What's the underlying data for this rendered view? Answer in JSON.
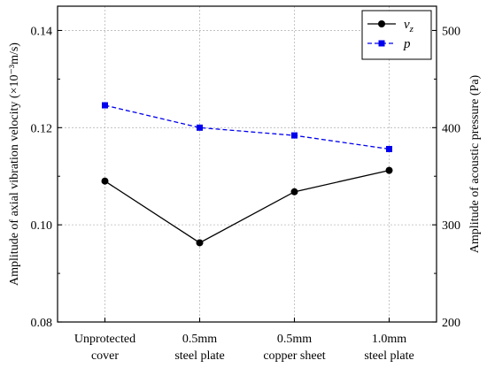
{
  "chart_data": {
    "type": "line",
    "categories": [
      [
        "Unprotected",
        "cover"
      ],
      [
        "0.5mm",
        "steel plate"
      ],
      [
        "0.5mm",
        "copper sheet"
      ],
      [
        "1.0mm",
        "steel plate"
      ]
    ],
    "left_axis": {
      "label": "Amplitude of axial vibration velocity (×10⁻³m/s)",
      "ylim": [
        0.08,
        0.145
      ],
      "ticks": [
        0.08,
        0.1,
        0.12,
        0.14
      ],
      "tick_labels": [
        "0.08",
        "0.10",
        "0.12",
        "0.14"
      ]
    },
    "right_axis": {
      "label": "Amplitude of acoustic pressure (Pa)",
      "ylim": [
        200,
        525
      ],
      "ticks": [
        200,
        300,
        400,
        500
      ],
      "tick_labels": [
        "200",
        "300",
        "400",
        "500"
      ]
    },
    "series": [
      {
        "name": "v",
        "name_sub": "z",
        "axis": "left",
        "values": [
          0.109,
          0.0963,
          0.1068,
          0.1112
        ],
        "color": "#000000",
        "line_style": "solid",
        "marker": "circle"
      },
      {
        "name": "p",
        "axis": "right",
        "values": [
          423,
          400,
          392,
          378
        ],
        "color": "#0000ee",
        "line_style": "dashed",
        "marker": "square"
      }
    ],
    "grid": true,
    "legend_position": "top-right"
  }
}
